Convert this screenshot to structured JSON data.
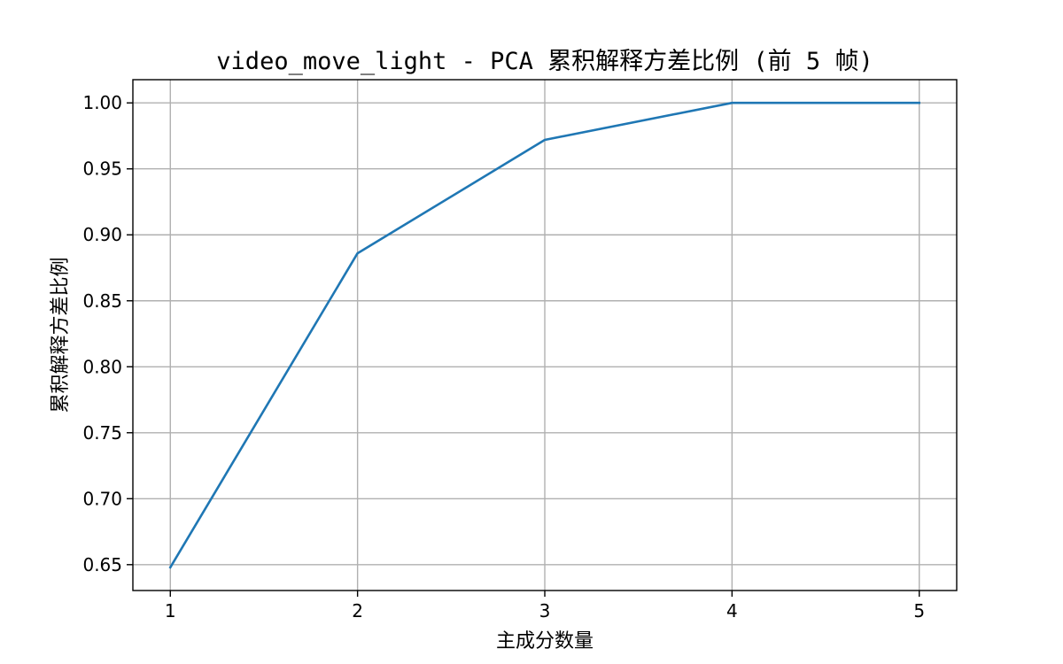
{
  "chart_data": {
    "type": "line",
    "title": "video_move_light - PCA 累积解释方差比例 (前 5 帧)",
    "xlabel": "主成分数量",
    "ylabel": "累积解释方差比例",
    "x": [
      1,
      2,
      3,
      4,
      5
    ],
    "series": [
      {
        "values": [
          0.648,
          0.886,
          0.972,
          1.0,
          1.0
        ],
        "color": "#1f77b4"
      }
    ],
    "xticks": [
      1,
      2,
      3,
      4,
      5
    ],
    "xtick_labels": [
      "1",
      "2",
      "3",
      "4",
      "5"
    ],
    "yticks": [
      0.65,
      0.7,
      0.75,
      0.8,
      0.85,
      0.9,
      0.95,
      1.0
    ],
    "ytick_labels": [
      "0.65",
      "0.70",
      "0.75",
      "0.80",
      "0.85",
      "0.90",
      "0.95",
      "1.00"
    ],
    "xlim": [
      0.8,
      5.2
    ],
    "ylim": [
      0.6304,
      1.0176
    ],
    "grid": true,
    "legend": false
  }
}
